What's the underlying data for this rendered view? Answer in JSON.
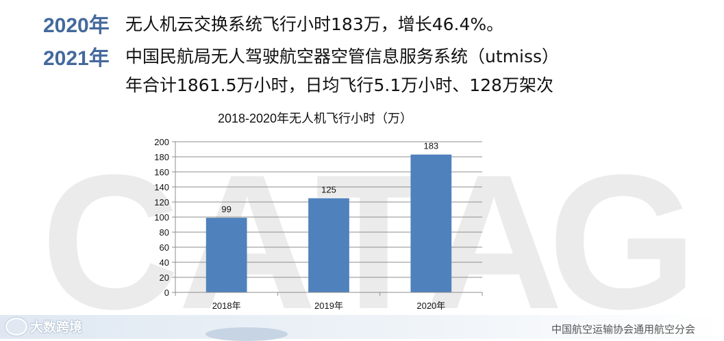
{
  "watermark": {
    "text": [
      "C",
      "A",
      "T",
      "A",
      "G"
    ]
  },
  "highlights": [
    {
      "year": "2020年",
      "lines": [
        "无人机云交换系统飞行小时183万，增长46.4%。"
      ]
    },
    {
      "year": "2021年",
      "lines": [
        "中国民航局无人驾驶航空器空管信息服务系统（utmiss）",
        "年合计1861.5万小时，日均飞行5.1万小时、128万架次"
      ]
    }
  ],
  "chart_data": {
    "type": "bar",
    "title": "2018-2020年无人机飞行小时（万）",
    "categories": [
      "2018年",
      "2019年",
      "2020年"
    ],
    "values": [
      99,
      125,
      183
    ],
    "ylim": [
      0,
      200
    ],
    "yticks": [
      0,
      20,
      40,
      60,
      80,
      100,
      120,
      140,
      160,
      180,
      200
    ],
    "xlabel": "",
    "ylabel": "",
    "grid": true,
    "legend": "none",
    "bar_color": "#4f81bd",
    "value_labels": [
      "99",
      "125",
      "183"
    ]
  },
  "footer": {
    "brand": "大数跨境",
    "organization": "中国航空运输协会通用航空分会"
  },
  "colors": {
    "year_accent": "#44699c",
    "bar": "#4f81bd"
  }
}
